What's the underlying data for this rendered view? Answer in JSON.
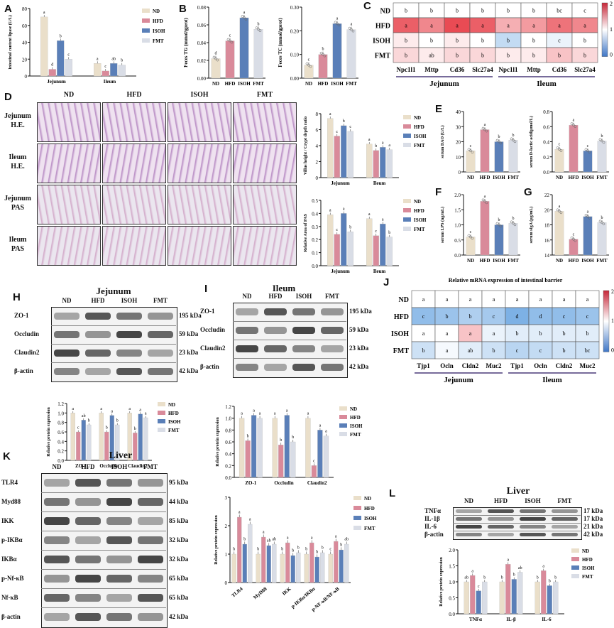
{
  "groups": [
    "ND",
    "HFD",
    "ISOH",
    "FMT"
  ],
  "colors": {
    "ND": "#eadfca",
    "HFD": "#d98a9a",
    "ISOH": "#5a7fb8",
    "FMT": "#d9dde6"
  },
  "panel_labels": [
    "A",
    "B",
    "C",
    "D",
    "E",
    "F",
    "G",
    "H",
    "I",
    "J",
    "K",
    "L"
  ],
  "panelA": {
    "ylabel": "Intestinal content lipase (U/L)",
    "categories": [
      "Jejunum",
      "Ileum"
    ],
    "values": {
      "ND": [
        70,
        15
      ],
      "HFD": [
        8,
        6
      ],
      "ISOH": [
        42,
        15
      ],
      "FMT": [
        20,
        13
      ]
    },
    "letters": {
      "ND": [
        "a",
        "a"
      ],
      "HFD": [
        "d",
        "c"
      ],
      "ISOH": [
        "b",
        "ab"
      ],
      "FMT": [
        "c",
        "b"
      ]
    },
    "ylim": [
      0,
      80
    ],
    "ticks": [
      "0",
      "20",
      "40",
      "60",
      "80"
    ]
  },
  "panelB1": {
    "ylabel": "Feces TG (mmol/gprot)",
    "categories": [
      "ND",
      "HFD",
      "ISOH",
      "FMT"
    ],
    "values": [
      0.022,
      0.042,
      0.068,
      0.055
    ],
    "letters": [
      "d",
      "c",
      "a",
      "b"
    ],
    "ylim": [
      0,
      0.08
    ],
    "ticks": [
      "0.00",
      "0.02",
      "0.04",
      "0.06",
      "0.08"
    ]
  },
  "panelB2": {
    "ylabel": "Feces TC (mmol/gprot)",
    "categories": [
      "ND",
      "HFD",
      "ISOH",
      "FMT"
    ],
    "values": [
      0.055,
      0.1,
      0.23,
      0.205
    ],
    "letters": [
      "c",
      "b",
      "a",
      "a"
    ],
    "ylim": [
      0,
      0.3
    ],
    "ticks": [
      "0.00",
      "0.10",
      "0.20",
      "0.30"
    ]
  },
  "panelC": {
    "rows": [
      "ND",
      "HFD",
      "ISOH",
      "FMT"
    ],
    "cols": [
      "Npc1l1",
      "Mttp",
      "Cd36",
      "Slc27a4",
      "Npc1l1",
      "Mttp",
      "Cd36",
      "Slc27a4"
    ],
    "letters": [
      [
        "b",
        "b",
        "b",
        "b",
        "b",
        "b",
        "bc",
        "c"
      ],
      [
        "a",
        "a",
        "a",
        "a",
        "a",
        "a",
        "a",
        "a"
      ],
      [
        "b",
        "b",
        "b",
        "b",
        "b",
        "b",
        "c",
        "b"
      ],
      [
        "b",
        "ab",
        "b",
        "b",
        "b",
        "b",
        "b",
        "b"
      ]
    ],
    "values": [
      [
        1,
        1,
        1,
        1,
        1,
        1,
        1,
        1
      ],
      [
        1.8,
        1.6,
        1.9,
        1.8,
        1.4,
        1.5,
        1.7,
        1.6
      ],
      [
        1.1,
        1.0,
        1.1,
        1.0,
        0.7,
        1.0,
        0.9,
        1.0
      ],
      [
        1.2,
        1.1,
        1.2,
        1.2,
        1.1,
        1.1,
        1.3,
        1.2
      ]
    ],
    "scale": [
      "2",
      "1",
      "0"
    ],
    "sections": [
      "Jejunum",
      "Ileum"
    ]
  },
  "panelD": {
    "cols": [
      "ND",
      "HFD",
      "ISOH",
      "FMT"
    ],
    "rows": [
      "Jejunum H.E.",
      "Ileum H.E.",
      "Jejunum PAS",
      "Ileum PAS"
    ],
    "vc_ylabel": "Villus height / Crypt depth ratio",
    "vc_categories": [
      "Jejunum",
      "Ileum"
    ],
    "vc_values": {
      "ND": [
        7.4,
        4.2
      ],
      "HFD": [
        5.2,
        3.4
      ],
      "ISOH": [
        6.5,
        3.8
      ],
      "FMT": [
        5.8,
        3.5
      ]
    },
    "vc_letters": {
      "ND": [
        "a",
        "a"
      ],
      "HFD": [
        "c",
        "b"
      ],
      "ISOH": [
        "b",
        "a"
      ],
      "FMT": [
        "c",
        "a"
      ]
    },
    "vc_ylim": [
      0,
      8
    ],
    "vc_ticks": [
      "0",
      "2",
      "4",
      "6",
      "8"
    ],
    "pas_ylabel": "Relative Area of PAS",
    "pas_categories": [
      "Jejunum",
      "Ileum"
    ],
    "pas_values": {
      "ND": [
        0.39,
        0.36
      ],
      "HFD": [
        0.24,
        0.23
      ],
      "ISOH": [
        0.4,
        0.32
      ],
      "FMT": [
        0.26,
        0.22
      ]
    },
    "pas_letters": {
      "ND": [
        "a",
        "a"
      ],
      "HFD": [
        "c",
        "c"
      ],
      "ISOH": [
        "a",
        "a"
      ],
      "FMT": [
        "b",
        "b"
      ]
    },
    "pas_ylim": [
      0,
      0.5
    ],
    "pas_ticks": [
      "0.0",
      "0.1",
      "0.2",
      "0.3",
      "0.4",
      "0.5"
    ]
  },
  "panelE1": {
    "ylabel": "serum DAO (U/L)",
    "categories": [
      "ND",
      "HFD",
      "ISOH",
      "FMT"
    ],
    "values": [
      14,
      28,
      20,
      21
    ],
    "letters": [
      "c",
      "a",
      "b",
      "b"
    ],
    "ylim": [
      0,
      40
    ],
    "ticks": [
      "0",
      "10",
      "20",
      "30",
      "40"
    ]
  },
  "panelE2": {
    "ylabel": "serum D-lactic acid(μmol/L)",
    "categories": [
      "ND",
      "HFD",
      "ISOH",
      "FMT"
    ],
    "values": [
      0.3,
      0.62,
      0.28,
      0.41
    ],
    "letters": [
      "c",
      "a",
      "c",
      "b"
    ],
    "ylim": [
      0,
      0.8
    ],
    "ticks": [
      "0.0",
      "0.2",
      "0.4",
      "0.6",
      "0.8"
    ]
  },
  "panelF": {
    "ylabel": "serum LPS (ng/mL)",
    "categories": [
      "ND",
      "HFD",
      "ISOH",
      "FMT"
    ],
    "values": [
      0.6,
      1.78,
      1.0,
      1.05
    ],
    "letters": [
      "c",
      "a",
      "b",
      "b"
    ],
    "ylim": [
      0,
      2.0
    ],
    "ticks": [
      "0.0",
      "0.5",
      "1.0",
      "1.5",
      "2.0"
    ]
  },
  "panelG": {
    "ylabel": "serum sIgA (μg/mL)",
    "categories": [
      "ND",
      "HFD",
      "ISOH",
      "FMT"
    ],
    "values": [
      19.8,
      16.1,
      19.1,
      18.3
    ],
    "letters": [
      "a",
      "c",
      "a",
      "b"
    ],
    "ylim": [
      14,
      22
    ],
    "ticks": [
      "14",
      "16",
      "18",
      "20",
      "22"
    ]
  },
  "panelH": {
    "title": "Jejunum",
    "proteins": [
      "ZO-1",
      "Occludin",
      "Claudin2",
      "β-actin"
    ],
    "kda": [
      "195 kDa",
      "59 kDa",
      "23 kDa",
      "42 kDa"
    ],
    "ylabel": "Relative protein expression",
    "categories": [
      "ZO-1",
      "Occludin",
      "Claudin2"
    ],
    "values": {
      "ND": [
        1.0,
        1.0,
        1.0
      ],
      "HFD": [
        0.6,
        0.6,
        0.58
      ],
      "ISOH": [
        0.85,
        0.95,
        0.98
      ],
      "FMT": [
        0.75,
        0.75,
        0.9
      ]
    },
    "letters": {
      "ND": [
        "a",
        "a",
        "a"
      ],
      "HFD": [
        "c",
        "b",
        "b"
      ],
      "ISOH": [
        "ab",
        "a",
        "a"
      ],
      "FMT": [
        "b",
        "b",
        "a"
      ]
    },
    "ylim": [
      0,
      1.2
    ],
    "ticks": [
      "0.0",
      "0.2",
      "0.4",
      "0.6",
      "0.8",
      "1.0",
      "1.2"
    ]
  },
  "panelI": {
    "title": "Ileum",
    "proteins": [
      "ZO-1",
      "Occludin",
      "Claudin2",
      "β-actin"
    ],
    "kda": [
      "195 kDa",
      "59 kDa",
      "23 kDa",
      "42 kDa"
    ],
    "ylabel": "Relative protein expression",
    "categories": [
      "ZO-1",
      "Occludin",
      "Claudin2"
    ],
    "values": {
      "ND": [
        1.0,
        1.0,
        1.0
      ],
      "HFD": [
        0.62,
        0.55,
        0.2
      ],
      "ISOH": [
        1.05,
        1.05,
        0.8
      ],
      "FMT": [
        1.0,
        0.6,
        0.7
      ]
    },
    "letters": {
      "ND": [
        "a",
        "a",
        "a"
      ],
      "HFD": [
        "b",
        "b",
        "c"
      ],
      "ISOH": [
        "a",
        "a",
        "a"
      ],
      "FMT": [
        "a",
        "b",
        "a"
      ]
    },
    "ylim": [
      0,
      1.2
    ],
    "ticks": [
      "0.0",
      "0.2",
      "0.4",
      "0.6",
      "0.8",
      "1.0",
      "1.2"
    ]
  },
  "panelJ": {
    "title": "Relative mRNA expression of intestinal barrier",
    "rows": [
      "ND",
      "HFD",
      "ISOH",
      "FMT"
    ],
    "cols": [
      "Tjp1",
      "Ocln",
      "Cldn2",
      "Muc2",
      "Tjp1",
      "Ocln",
      "Cldn2",
      "Muc2"
    ],
    "letters": [
      [
        "a",
        "a",
        "a",
        "a",
        "a",
        "a",
        "a",
        "a"
      ],
      [
        "c",
        "b",
        "b",
        "c",
        "d",
        "d",
        "c",
        "c"
      ],
      [
        "a",
        "a",
        "a",
        "a",
        "b",
        "b",
        "b",
        "b"
      ],
      [
        "b",
        "a",
        "ab",
        "b",
        "c",
        "c",
        "b",
        "bc"
      ]
    ],
    "values": [
      [
        1,
        1,
        1,
        1,
        1,
        1,
        1,
        1
      ],
      [
        0.45,
        0.5,
        0.6,
        0.55,
        0.35,
        0.45,
        0.45,
        0.5
      ],
      [
        1.0,
        1.0,
        1.3,
        0.9,
        0.85,
        0.85,
        0.85,
        0.85
      ],
      [
        0.75,
        0.95,
        0.85,
        0.75,
        0.65,
        0.7,
        0.75,
        0.75
      ]
    ],
    "scale": [
      "2",
      "1",
      "0"
    ],
    "sections": [
      "Jejunum",
      "Ileum"
    ]
  },
  "panelK": {
    "title": "Liver",
    "proteins": [
      "TLR4",
      "Myd88",
      "IKK",
      "p-IKBα",
      "IKBα",
      "p-Nf-κB",
      "Nf-κB",
      "β-actin"
    ],
    "kda": [
      "95 kDa",
      "44 kDa",
      "85 kDa",
      "32 kDa",
      "32 kDa",
      "65 kDa",
      "65 kDa",
      "42 kDa"
    ],
    "ylabel": "Relative protein expression",
    "categories": [
      "TLR4",
      "MyD88",
      "IKK",
      "p-IKBα/IKBα",
      "p-NF-κB/NF-κB"
    ],
    "values": {
      "ND": [
        1.0,
        1.0,
        1.0,
        1.0,
        1.0
      ],
      "HFD": [
        2.3,
        1.6,
        1.4,
        1.4,
        1.45
      ],
      "ISOH": [
        1.35,
        1.3,
        0.95,
        0.9,
        1.15
      ],
      "FMT": [
        2.05,
        1.35,
        1.05,
        1.05,
        1.35
      ]
    },
    "letters": {
      "ND": [
        "b",
        "b",
        "b",
        "b",
        "c"
      ],
      "HFD": [
        "a",
        "a",
        "a",
        "a",
        "a"
      ],
      "ISOH": [
        "b",
        "ab",
        "b",
        "b",
        "b"
      ],
      "FMT": [
        "a",
        "ab",
        "b",
        "b",
        "ab"
      ]
    },
    "ylim": [
      0,
      3
    ],
    "ticks": [
      "0",
      "1",
      "2",
      "3"
    ]
  },
  "panelL": {
    "title": "Liver",
    "proteins": [
      "TNFα",
      "IL-1β",
      "IL-6",
      "β-actin"
    ],
    "kda": [
      "17 kDa",
      "17 kDa",
      "21 kDa",
      "42 kDa"
    ],
    "ylabel": "Relative protein expression",
    "categories": [
      "TNFα",
      "IL-β",
      "IL-6"
    ],
    "values": {
      "ND": [
        1.0,
        1.0,
        1.0
      ],
      "HFD": [
        1.2,
        1.55,
        1.35
      ],
      "ISOH": [
        0.72,
        1.08,
        0.88
      ],
      "FMT": [
        1.0,
        1.3,
        1.0
      ]
    },
    "letters": {
      "ND": [
        "ab",
        "b",
        "b"
      ],
      "HFD": [
        "a",
        "a",
        "a"
      ],
      "ISOH": [
        "c",
        "b",
        "b"
      ],
      "FMT": [
        "b",
        "ab",
        "b"
      ]
    },
    "ylim": [
      0,
      2.0
    ],
    "ticks": [
      "0.0",
      "0.5",
      "1.0",
      "1.5",
      "2.0"
    ]
  }
}
